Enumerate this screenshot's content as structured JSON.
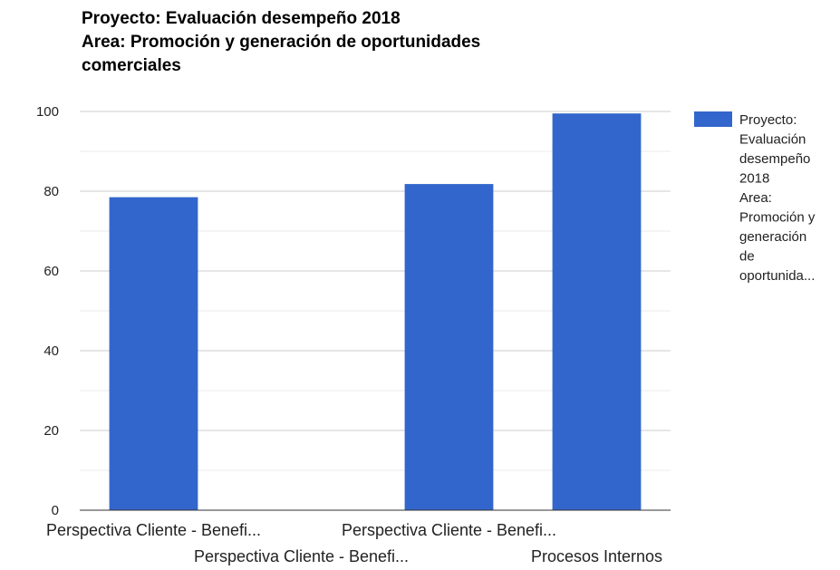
{
  "chart_data": {
    "type": "bar",
    "title_lines": [
      "Proyecto: Evaluación desempeño 2018",
      "Area: Promoción y generación de oportunidades",
      "comerciales"
    ],
    "categories": [
      "Perspectiva Cliente - Benefi...",
      "Perspectiva Cliente - Benefi...",
      "Perspectiva Cliente - Benefi...",
      "Procesos Internos"
    ],
    "series": [
      {
        "name": "Proyecto: Evaluación desempeño 2018 Area: Promoción y generación de oportunida...",
        "legend_lines": [
          "Proyecto:",
          "Evaluación",
          "desempeño",
          "2018",
          "Area:",
          "Promoción y",
          "generación",
          "de",
          "oportunida..."
        ],
        "color": "#3366cc",
        "values": [
          78.5,
          0,
          81.8,
          99.5
        ]
      }
    ],
    "yticks": [
      "0",
      "20",
      "40",
      "60",
      "80",
      "100"
    ],
    "ylim": [
      0,
      100
    ],
    "grid": true,
    "legend_position": "right"
  }
}
